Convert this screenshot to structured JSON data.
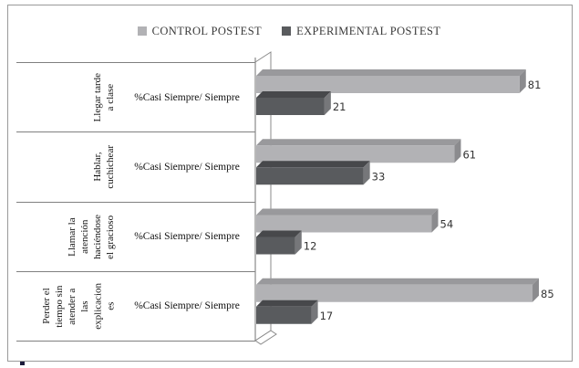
{
  "legend": {
    "items": [
      {
        "label": "CONTROL POSTEST",
        "color": "#b2b2b5"
      },
      {
        "label": "EXPERIMENTAL POSTEST",
        "color": "#595b5e"
      }
    ]
  },
  "chart_data": {
    "type": "bar",
    "orientation": "horizontal",
    "style": "3d-beveled",
    "title": "",
    "categories": [
      "Llegar tarde\na clase",
      "Hablar,\ncuchichear",
      "Llamar la\natención\nhaciéndose\nel gracioso",
      "Perder el\ntiempo sin\natender a\nlas\nexplicacion\nes"
    ],
    "category_sublabel": "%Casi Siempre/ Siempre",
    "series": [
      {
        "name": "CONTROL POSTEST",
        "values": [
          81,
          61,
          54,
          85
        ],
        "face_color": "#b2b2b5",
        "top_color": "#99999c",
        "side_color": "#8b8b8e"
      },
      {
        "name": "EXPERIMENTAL POSTEST",
        "values": [
          21,
          33,
          12,
          17
        ],
        "face_color": "#595b5e",
        "top_color": "#47484b",
        "side_color": "#76777a"
      }
    ],
    "value_labels_visible": true,
    "xlim": [
      0,
      97
    ],
    "grid": false,
    "legend_position": "top",
    "axis_color": "#8a8a8a"
  }
}
